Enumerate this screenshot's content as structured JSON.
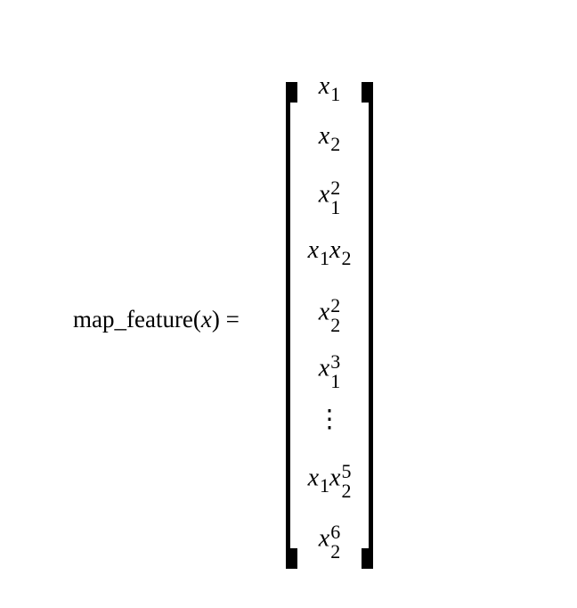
{
  "equation": {
    "lhs_function": "map_feature(",
    "lhs_var": "x",
    "lhs_close": ")",
    "equals": "=",
    "vector": [
      {
        "base1": "x",
        "sub1": "1"
      },
      {
        "base1": "x",
        "sub1": "2"
      },
      {
        "base1": "x",
        "sub1": "1",
        "sup1": "2"
      },
      {
        "base1": "x",
        "sub1": "1",
        "base2": "x",
        "sub2": "2"
      },
      {
        "base1": "x",
        "sub1": "2",
        "sup1": "2"
      },
      {
        "base1": "x",
        "sub1": "1",
        "sup1": "3"
      },
      {
        "dots": "⋮"
      },
      {
        "base1": "x",
        "sub1": "1",
        "base2": "x",
        "sub2": "2",
        "sup2": "5"
      },
      {
        "base1": "x",
        "sub1": "2",
        "sup1": "6"
      }
    ]
  }
}
